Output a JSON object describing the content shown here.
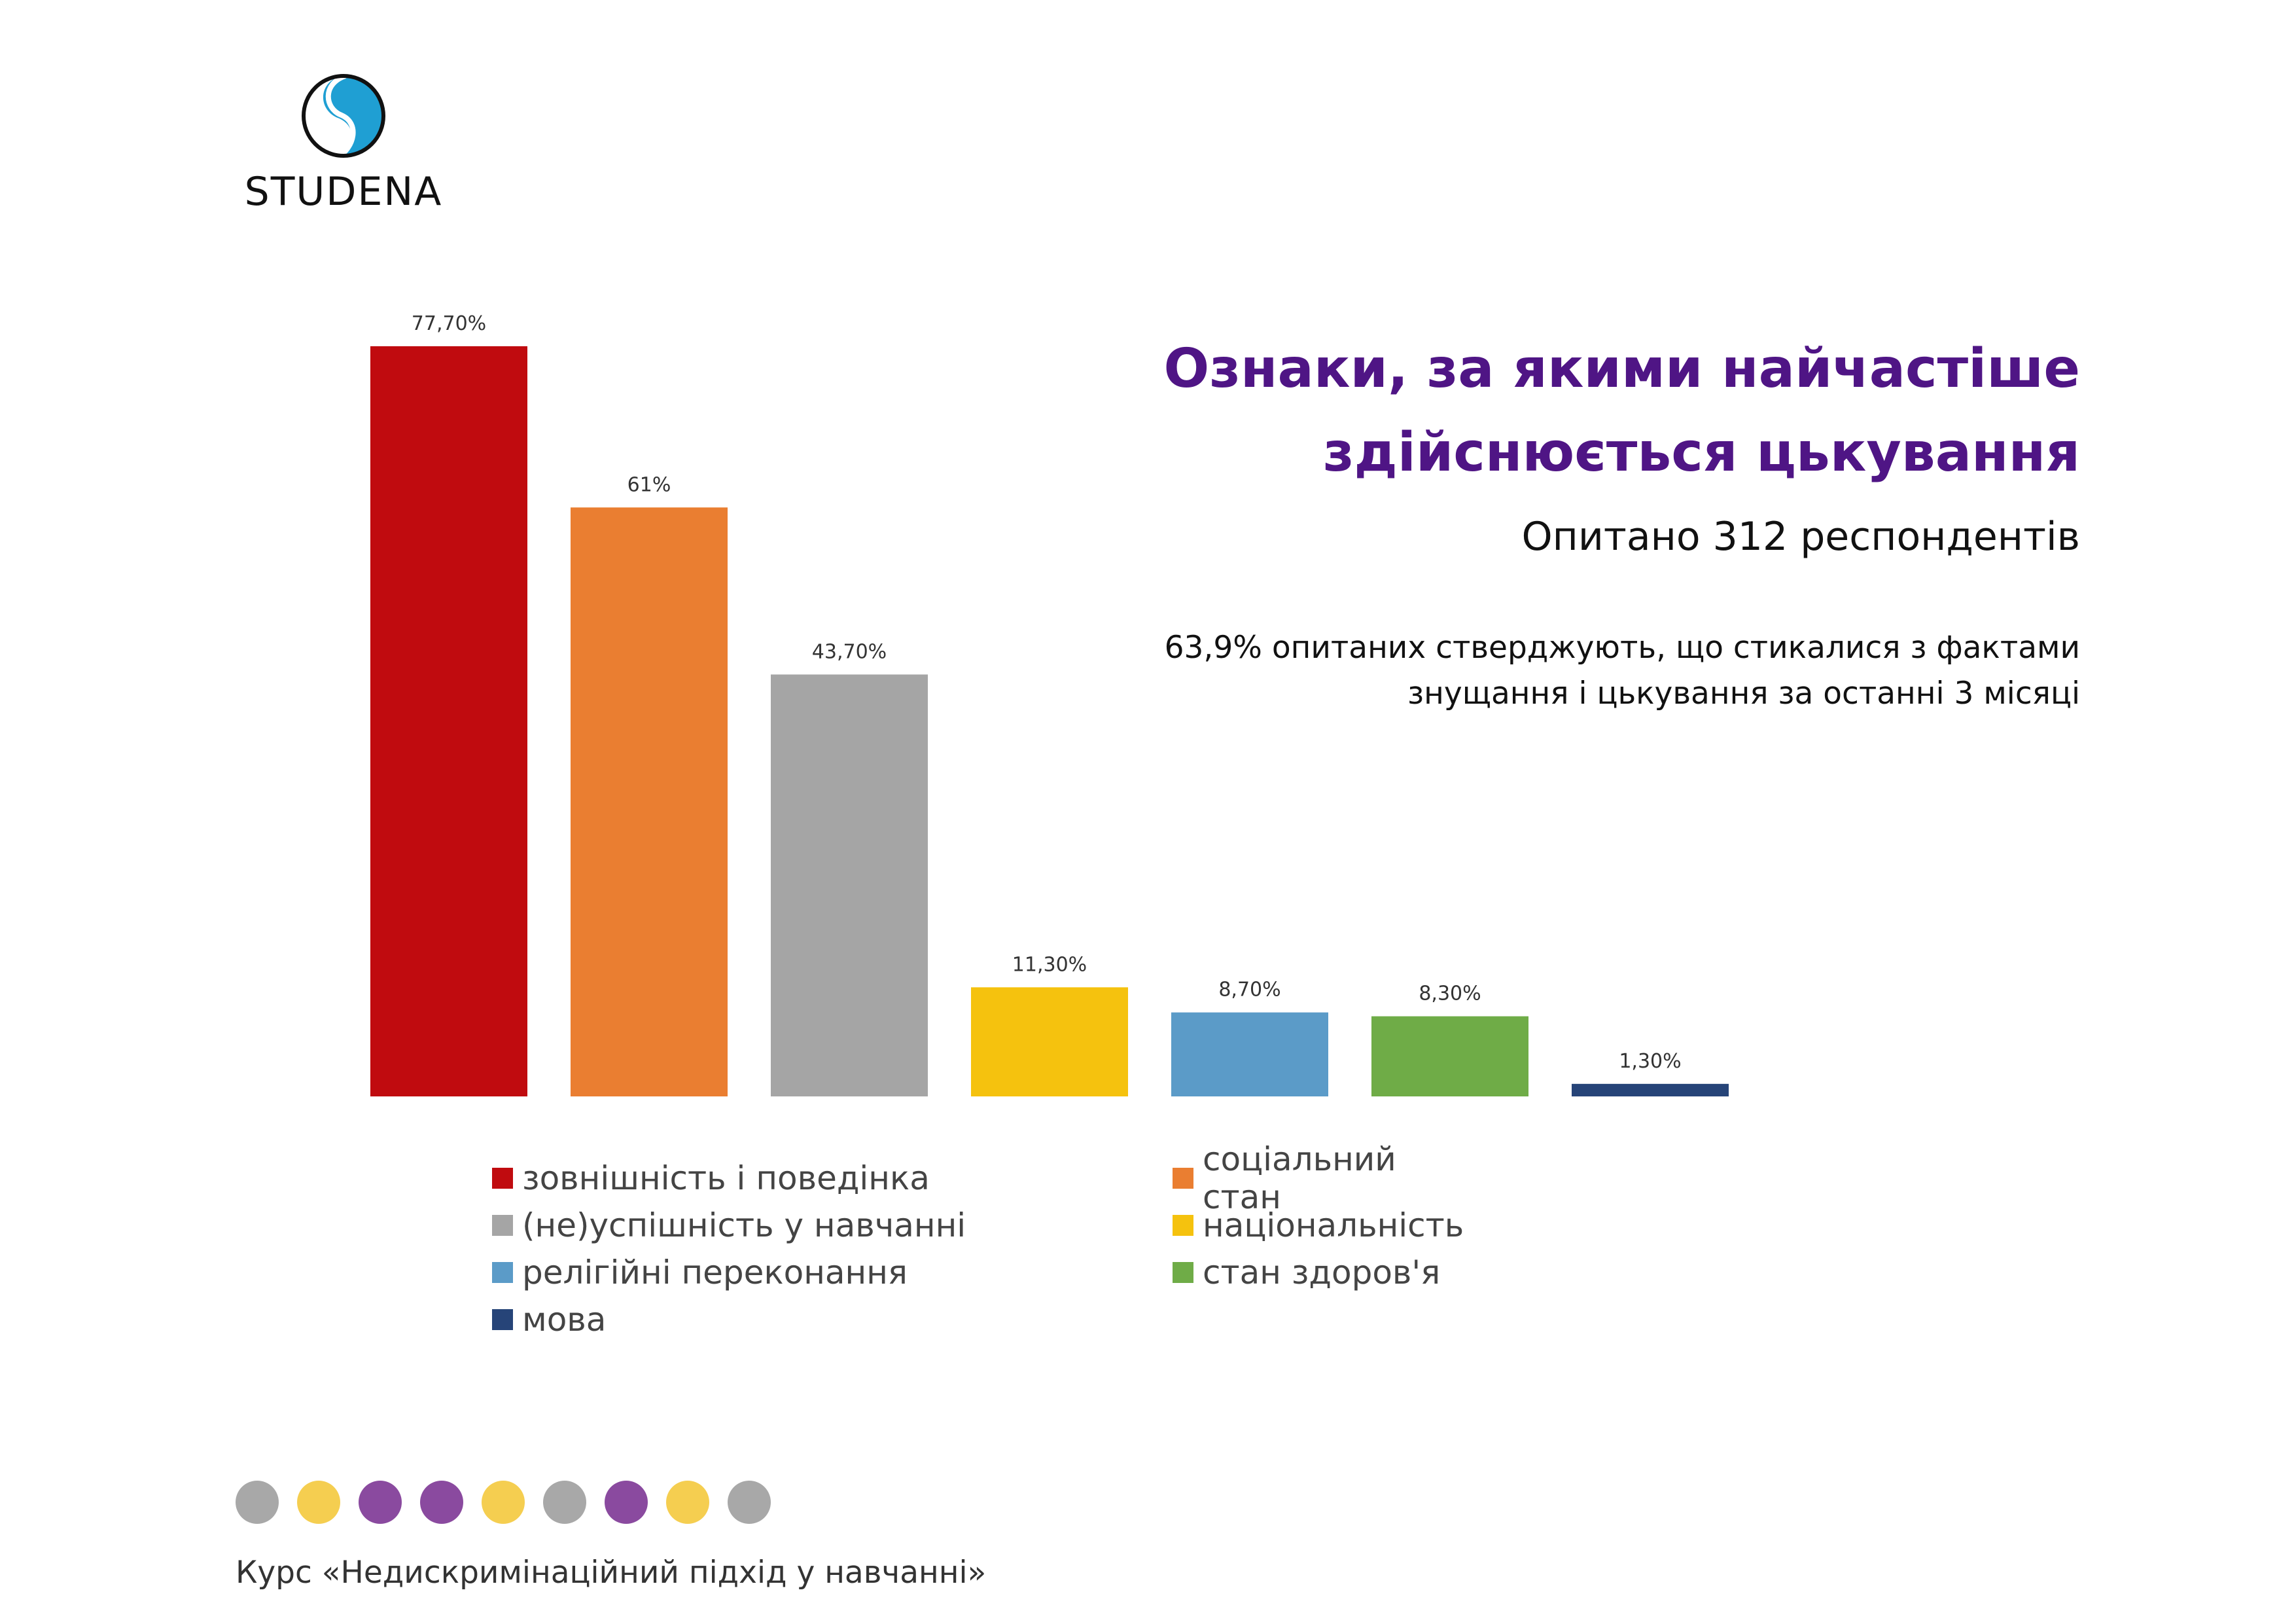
{
  "logo": {
    "text": "STUDENA",
    "icon": "studena-wave-logo-icon",
    "colors": {
      "ring": "#111111",
      "wave": "#1f9fd3"
    }
  },
  "header": {
    "title_line1": "Ознаки, за якими найчастіше",
    "title_line2": "здійснюється цькування",
    "subtitle": "Опитано 312 респондентів",
    "note_line1": "63,9% опитаних стверджують, що стикалися з фактами",
    "note_line2": "знущання і цькування за останні 3 місяці",
    "title_color": "#4f1585"
  },
  "chart_data": {
    "type": "bar",
    "title": "Ознаки, за якими найчастіше здійснюється цькування",
    "categories": [
      "зовнішність і поведінка",
      "соціальний стан",
      "(не)успішність у навчанні",
      "національність",
      "релігійні переконання",
      "стан здоров'я",
      "мова"
    ],
    "values": [
      77.7,
      61,
      43.7,
      11.3,
      8.7,
      8.3,
      1.3
    ],
    "value_labels": [
      "77,70%",
      "61%",
      "43,70%",
      "11,30%",
      "8,70%",
      "8,30%",
      "1,30%"
    ],
    "colors": [
      "#c00b0f",
      "#ea7e31",
      "#a5a5a5",
      "#f5c20e",
      "#5b9bc8",
      "#6fac47",
      "#264478"
    ],
    "ylim": [
      0,
      80
    ],
    "grid": false,
    "legend_position": "bottom"
  },
  "legend": {
    "items": [
      {
        "label": "зовнішність і поведінка",
        "color": "#c00b0f"
      },
      {
        "label": "соціальний стан",
        "color": "#ea7e31"
      },
      {
        "label": "(не)успішність у навчанні",
        "color": "#a5a5a5"
      },
      {
        "label": "національність",
        "color": "#f5c20e"
      },
      {
        "label": "релігійні переконання",
        "color": "#5b9bc8"
      },
      {
        "label": "стан здоров'я",
        "color": "#6fac47"
      },
      {
        "label": "мова",
        "color": "#264478"
      }
    ]
  },
  "decor": {
    "dot_colors": [
      "#a8a8a8",
      "#f5ce50",
      "#8a4a9f",
      "#8a4a9f",
      "#f5ce50",
      "#a8a8a8",
      "#8a4a9f",
      "#f5ce50",
      "#a8a8a8"
    ]
  },
  "footer": {
    "text": "Курс «Недискримінаційний підхід у навчанні»"
  }
}
